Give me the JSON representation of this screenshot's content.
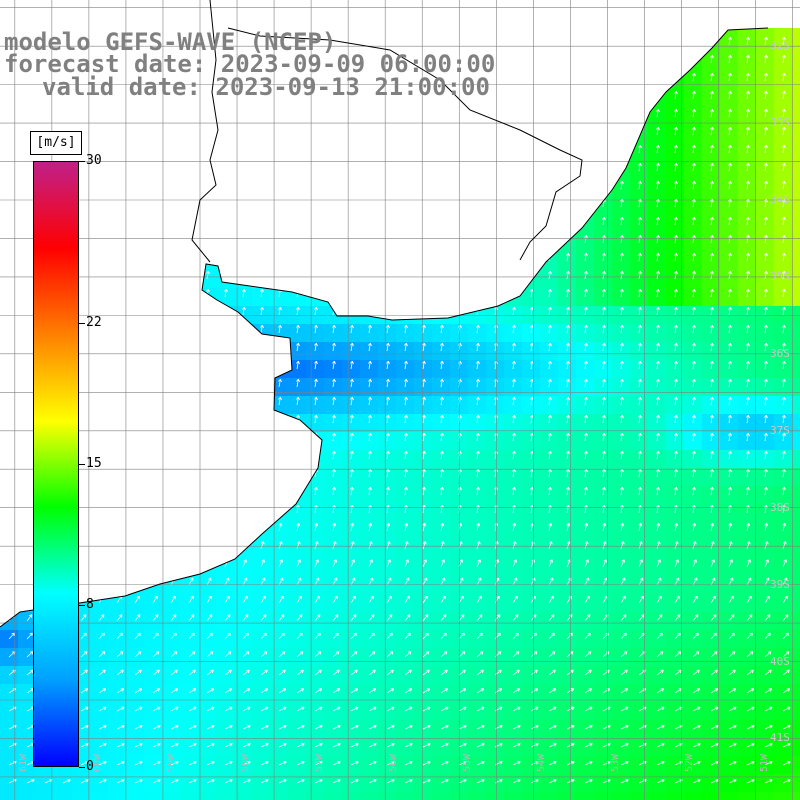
{
  "header": {
    "model_line": "modelo GEFS-WAVE (NCEP)",
    "forecast_line": "forecast date: 2023-09-09 06:00:00",
    "valid_line": "valid date: 2023-09-13 21:00:00"
  },
  "colorbar": {
    "unit": "[m/s]",
    "range": [
      0,
      30
    ],
    "ticks": [
      "30",
      "22",
      "15",
      "8",
      "0"
    ],
    "tick_values": [
      30,
      22,
      15,
      8,
      0
    ],
    "colors": [
      "#0000ff",
      "#00a0ff",
      "#00ffff",
      "#00ff00",
      "#ffff00",
      "#ff8000",
      "#ff0000",
      "#c0208a"
    ]
  },
  "map": {
    "latitude_labels": [
      "32S",
      "33S",
      "34S",
      "35S",
      "36S",
      "37S",
      "38S",
      "39S",
      "40S",
      "41S"
    ],
    "latitude_values": [
      -32,
      -33,
      -34,
      -35,
      -36,
      -37,
      -38,
      -39,
      -40,
      -41
    ],
    "longitude_labels": [
      "61W",
      "60W",
      "59W",
      "58W",
      "57W",
      "56W",
      "55W",
      "54W",
      "53W",
      "52W",
      "51W"
    ],
    "longitude_values": [
      -61,
      -60,
      -59,
      -58,
      -57,
      -56,
      -55,
      -54,
      -53,
      -52,
      -51
    ],
    "extent": {
      "lon_min": -61.2,
      "lon_max": -50.4,
      "lat_min": -41.8,
      "lat_max": -31.4
    },
    "field": "wind speed (m/s) with wind direction arrows",
    "colors": {
      "land": "#ffffff",
      "coastline": "#000000",
      "grid": "#808080",
      "arrow": "#ffffff"
    }
  }
}
